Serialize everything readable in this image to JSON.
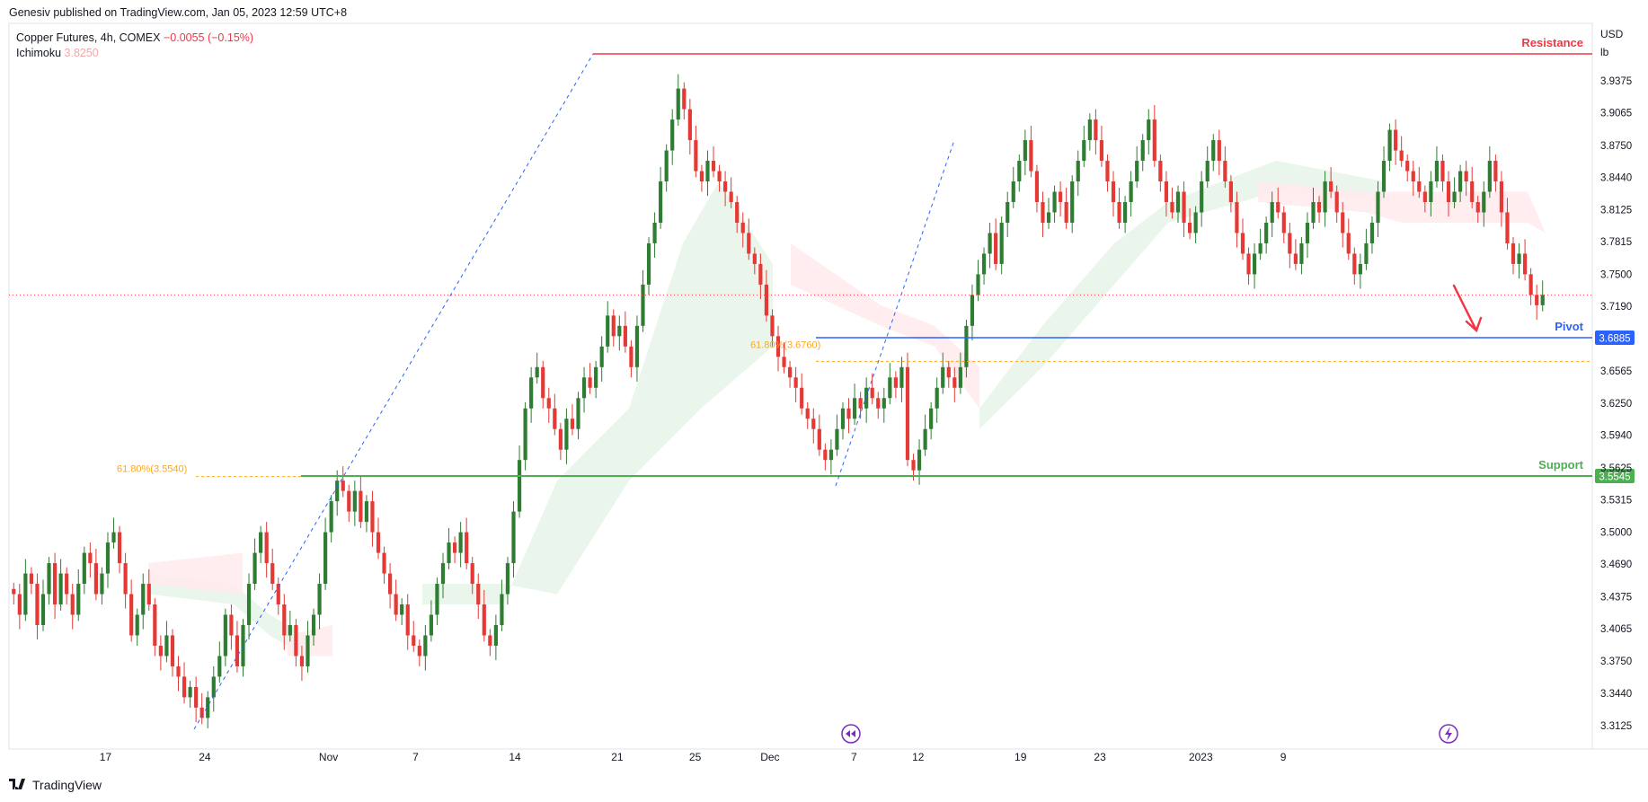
{
  "header": {
    "published_text": "Genesiv published on TradingView.com, Jan 05, 2023 12:59 UTC+8"
  },
  "legend": {
    "symbol": "Copper Futures, 4h, COMEX",
    "change": "−0.0055 (−0.15%)",
    "indicator_name": "Ichimoku",
    "indicator_value": "3.8250"
  },
  "footer": {
    "brand": "TradingView",
    "logo_icon": "tradingview-logo-icon"
  },
  "colors": {
    "up": "#2e7d32",
    "down": "#e53935",
    "resistance": "#f23645",
    "pivot": "#2962ff",
    "support": "#4caf50",
    "fib": "#f9a825",
    "cloud_bull": "#e8f5e9",
    "cloud_bear": "#ffebee",
    "price_line": "#f23645"
  },
  "chart_data": {
    "type": "candlestick",
    "title": "Copper Futures, 4h, COMEX",
    "unit": [
      "USD",
      "lb"
    ],
    "ylim": [
      3.3,
      4.0
    ],
    "y_ticks": [
      "3.9375",
      "3.9065",
      "3.8750",
      "3.8440",
      "3.8125",
      "3.7815",
      "3.7500",
      "3.7190",
      "3.6565",
      "3.6250",
      "3.5940",
      "3.5625",
      "3.5315",
      "3.5000",
      "3.4690",
      "3.4375",
      "3.4065",
      "3.3750",
      "3.3440",
      "3.3125"
    ],
    "x_ticks": [
      "17",
      "24",
      "Nov",
      "7",
      "14",
      "21",
      "25",
      "Dec",
      "7",
      "12",
      "19",
      "23",
      "2023",
      "9"
    ],
    "last_price": 3.73,
    "levels": [
      {
        "name": "Resistance",
        "value": 3.9636
      },
      {
        "name": "Pivot",
        "value": 3.6885,
        "label": "3.6885"
      },
      {
        "name": "Support",
        "value": 3.5545,
        "label": "3.5545"
      }
    ],
    "fib_annotations": [
      {
        "label": "61.80%(3.5540)",
        "value": 3.554
      },
      {
        "label": "61.80%(3.6760)",
        "value": 3.676
      }
    ],
    "closes": [
      3.44,
      3.42,
      3.46,
      3.45,
      3.41,
      3.44,
      3.47,
      3.43,
      3.46,
      3.44,
      3.42,
      3.45,
      3.48,
      3.47,
      3.44,
      3.46,
      3.49,
      3.5,
      3.47,
      3.44,
      3.4,
      3.42,
      3.45,
      3.43,
      3.39,
      3.38,
      3.4,
      3.37,
      3.36,
      3.34,
      3.35,
      3.33,
      3.32,
      3.34,
      3.36,
      3.38,
      3.42,
      3.4,
      3.37,
      3.41,
      3.45,
      3.48,
      3.5,
      3.47,
      3.45,
      3.43,
      3.4,
      3.41,
      3.38,
      3.37,
      3.4,
      3.42,
      3.45,
      3.5,
      3.53,
      3.55,
      3.54,
      3.52,
      3.54,
      3.51,
      3.53,
      3.5,
      3.48,
      3.46,
      3.44,
      3.42,
      3.43,
      3.4,
      3.39,
      3.38,
      3.4,
      3.42,
      3.45,
      3.47,
      3.49,
      3.48,
      3.5,
      3.47,
      3.45,
      3.43,
      3.4,
      3.39,
      3.41,
      3.44,
      3.47,
      3.52,
      3.57,
      3.62,
      3.65,
      3.66,
      3.63,
      3.62,
      3.6,
      3.58,
      3.61,
      3.6,
      3.63,
      3.65,
      3.64,
      3.66,
      3.68,
      3.71,
      3.69,
      3.7,
      3.68,
      3.66,
      3.7,
      3.74,
      3.78,
      3.8,
      3.84,
      3.87,
      3.9,
      3.93,
      3.91,
      3.88,
      3.85,
      3.84,
      3.86,
      3.85,
      3.84,
      3.83,
      3.82,
      3.8,
      3.79,
      3.77,
      3.76,
      3.74,
      3.71,
      3.69,
      3.67,
      3.66,
      3.65,
      3.64,
      3.62,
      3.61,
      3.6,
      3.58,
      3.57,
      3.58,
      3.6,
      3.62,
      3.61,
      3.63,
      3.62,
      3.64,
      3.63,
      3.62,
      3.63,
      3.65,
      3.64,
      3.66,
      3.57,
      3.56,
      3.58,
      3.6,
      3.62,
      3.64,
      3.66,
      3.65,
      3.64,
      3.66,
      3.7,
      3.73,
      3.75,
      3.77,
      3.79,
      3.76,
      3.8,
      3.82,
      3.84,
      3.86,
      3.88,
      3.85,
      3.82,
      3.8,
      3.81,
      3.83,
      3.82,
      3.8,
      3.84,
      3.86,
      3.88,
      3.9,
      3.88,
      3.86,
      3.84,
      3.82,
      3.8,
      3.82,
      3.84,
      3.86,
      3.88,
      3.9,
      3.86,
      3.84,
      3.82,
      3.81,
      3.83,
      3.8,
      3.79,
      3.81,
      3.84,
      3.86,
      3.88,
      3.86,
      3.84,
      3.82,
      3.79,
      3.77,
      3.75,
      3.77,
      3.78,
      3.8,
      3.82,
      3.81,
      3.79,
      3.77,
      3.76,
      3.78,
      3.8,
      3.82,
      3.81,
      3.84,
      3.83,
      3.81,
      3.79,
      3.77,
      3.75,
      3.76,
      3.78,
      3.8,
      3.83,
      3.86,
      3.89,
      3.87,
      3.86,
      3.85,
      3.84,
      3.83,
      3.82,
      3.84,
      3.86,
      3.84,
      3.82,
      3.83,
      3.85,
      3.84,
      3.82,
      3.81,
      3.83,
      3.86,
      3.84,
      3.81,
      3.78,
      3.76,
      3.77,
      3.75,
      3.73,
      3.72,
      3.73
    ]
  }
}
